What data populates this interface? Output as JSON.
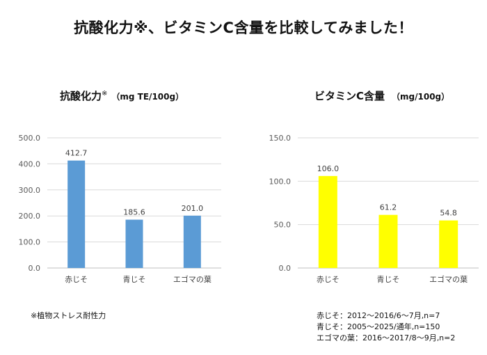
{
  "title": "抗酸化力※、ビタミンC含量を比較してみました！",
  "charts_meta": [
    {
      "title_main": "抗酸化力",
      "title_mark": "※",
      "title_unit": "（mg TE/100g）"
    },
    {
      "title_main": "ビタミンC含量",
      "title_mark": "",
      "title_unit": "（mg/100g）"
    }
  ],
  "chart_data": [
    {
      "type": "bar",
      "title": "抗酸化力※ （mg TE/100g）",
      "categories": [
        "赤じそ",
        "青じそ",
        "エゴマの葉"
      ],
      "values": [
        412.7,
        185.6,
        201.0
      ],
      "value_labels": [
        "412.7",
        "185.6",
        "201.0"
      ],
      "ylim": [
        0,
        500
      ],
      "yticks": [
        "0.0",
        "100.0",
        "200.0",
        "300.0",
        "400.0",
        "500.0"
      ],
      "grid": true,
      "color": "#5b9bd5"
    },
    {
      "type": "bar",
      "title": "ビタミンC含量 （mg/100g）",
      "categories": [
        "赤じそ",
        "青じそ",
        "エゴマの葉"
      ],
      "values": [
        106.0,
        61.2,
        54.8
      ],
      "value_labels": [
        "106.0",
        "61.2",
        "54.8"
      ],
      "ylim": [
        0,
        150
      ],
      "yticks": [
        "0.0",
        "50.0",
        "100.0",
        "150.0"
      ],
      "grid": true,
      "color": "#ffff00"
    }
  ],
  "footnote": "※植物ストレス耐性力",
  "sources": [
    "赤じそ：2012～2016/6～7月,n=7",
    "青じそ：2005～2025/通年,n=150",
    "エゴマの葉：2016～2017/8～9月,n=2"
  ]
}
